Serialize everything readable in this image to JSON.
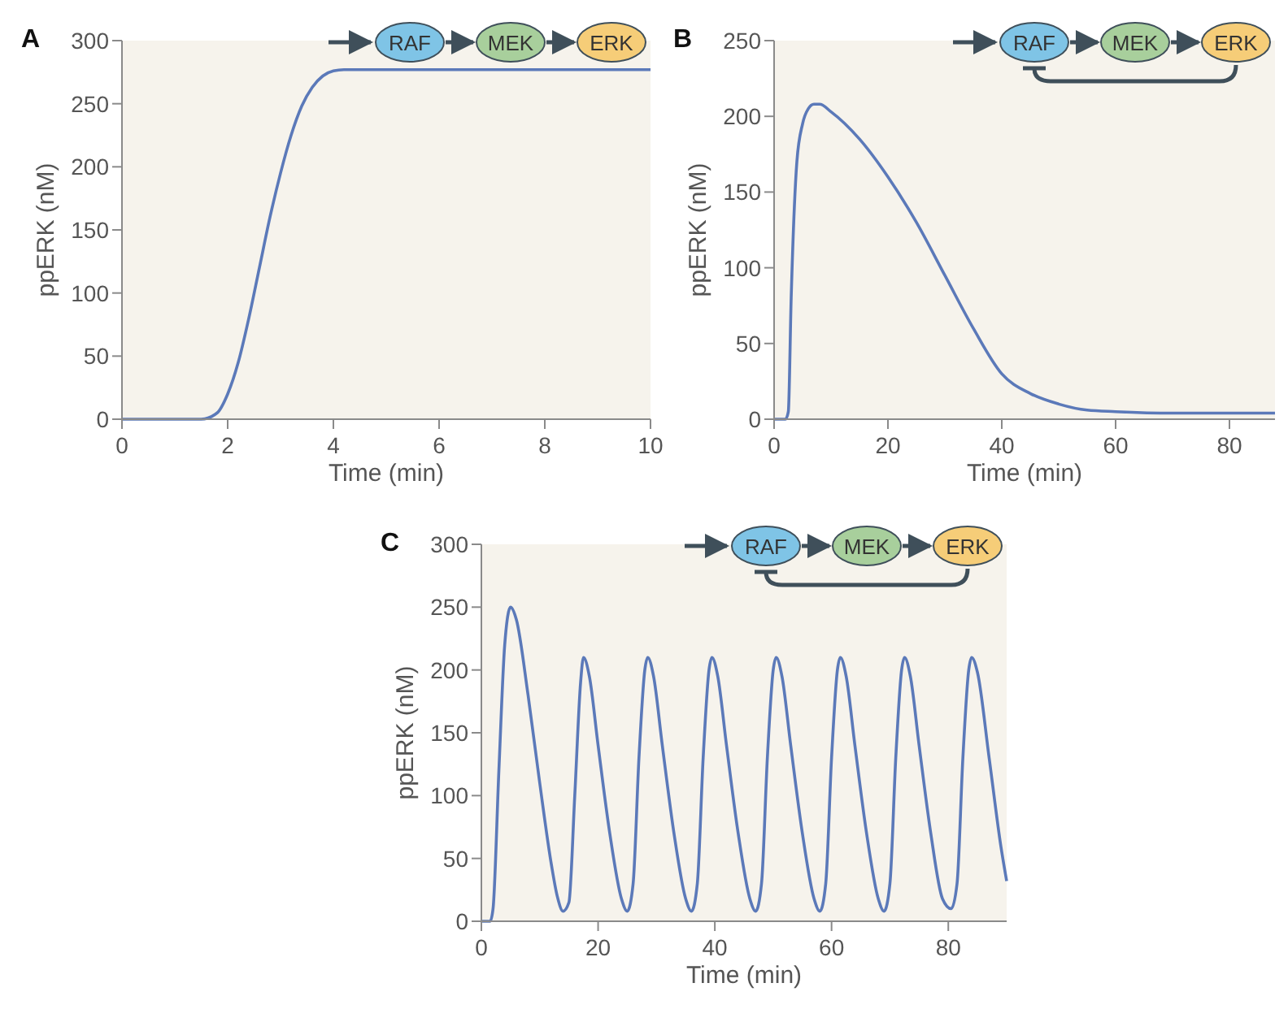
{
  "chart_data": [
    {
      "type": "line",
      "title": "A",
      "xlabel": "Time (min)",
      "ylabel": "ppERK (nM)",
      "xlim": [
        0,
        10
      ],
      "xticks": [
        0,
        2,
        4,
        6,
        8,
        10
      ],
      "ylim": [
        0,
        300
      ],
      "yticks": [
        0,
        50,
        100,
        150,
        200,
        250,
        300
      ],
      "annotations": [
        "RAF",
        "MEK",
        "ERK"
      ],
      "series": [
        {
          "color": "#5b79b9",
          "x": [
            0,
            1,
            1.5,
            1.8,
            2,
            2.2,
            2.4,
            2.6,
            2.8,
            3,
            3.2,
            3.4,
            3.6,
            3.8,
            4,
            4.2,
            4.4,
            5,
            6,
            8,
            10
          ],
          "values": [
            0,
            0,
            0,
            5,
            20,
            45,
            80,
            120,
            160,
            195,
            225,
            248,
            263,
            272,
            276,
            277,
            277,
            277,
            277,
            277,
            277
          ]
        }
      ]
    },
    {
      "type": "line",
      "title": "B",
      "xlabel": "Time (min)",
      "ylabel": "ppERK (nM)",
      "xlim": [
        0,
        88
      ],
      "xticks": [
        0,
        20,
        40,
        60,
        80
      ],
      "ylim": [
        0,
        250
      ],
      "yticks": [
        0,
        50,
        100,
        150,
        200,
        250
      ],
      "annotations": [
        "RAF",
        "MEK",
        "ERK"
      ],
      "series": [
        {
          "color": "#5b79b9",
          "x": [
            0,
            2,
            2.5,
            3,
            4,
            5,
            6,
            7,
            8,
            10,
            15,
            20,
            25,
            30,
            35,
            40,
            45,
            50,
            55,
            60,
            70,
            80,
            88
          ],
          "values": [
            0,
            0,
            5,
            80,
            170,
            195,
            205,
            208,
            208,
            203,
            185,
            160,
            130,
            95,
            60,
            30,
            17,
            10,
            6,
            5,
            4,
            4,
            4
          ]
        }
      ]
    },
    {
      "type": "line",
      "title": "C",
      "xlabel": "Time (min)",
      "ylabel": "ppERK (nM)",
      "xlim": [
        0,
        90
      ],
      "xticks": [
        0,
        20,
        40,
        60,
        80
      ],
      "ylim": [
        0,
        300
      ],
      "yticks": [
        0,
        50,
        100,
        150,
        200,
        250,
        300
      ],
      "annotations": [
        "RAF",
        "MEK",
        "ERK"
      ],
      "series": [
        {
          "color": "#5b79b9",
          "x": [
            0,
            1.5,
            2,
            3,
            4,
            5,
            6,
            8,
            10,
            12,
            13,
            14,
            15,
            16,
            17,
            17.5,
            18.5,
            20,
            22,
            24,
            25,
            26,
            27,
            28,
            28.5,
            29.5,
            31,
            33,
            35,
            36,
            37,
            38,
            39,
            39.5,
            40.5,
            42,
            44,
            46,
            47,
            48,
            49,
            50,
            50.5,
            51.5,
            53,
            55,
            57,
            58,
            59,
            60,
            61,
            61.5,
            62.5,
            64,
            66,
            68,
            69,
            70,
            71,
            72,
            72.5,
            73.5,
            75,
            77,
            79,
            80.5,
            81.5,
            82.5,
            83.5,
            84,
            85,
            87,
            89,
            90
          ],
          "values": [
            0,
            0,
            10,
            120,
            220,
            250,
            240,
            180,
            110,
            45,
            20,
            8,
            15,
            100,
            190,
            210,
            195,
            140,
            70,
            18,
            8,
            30,
            130,
            200,
            210,
            195,
            140,
            70,
            18,
            8,
            30,
            130,
            200,
            210,
            195,
            140,
            70,
            18,
            8,
            30,
            130,
            200,
            210,
            195,
            140,
            70,
            18,
            8,
            30,
            130,
            200,
            210,
            195,
            140,
            70,
            18,
            8,
            30,
            130,
            200,
            210,
            195,
            140,
            70,
            18,
            10,
            30,
            130,
            200,
            210,
            198,
            130,
            60,
            32
          ]
        }
      ]
    }
  ]
}
